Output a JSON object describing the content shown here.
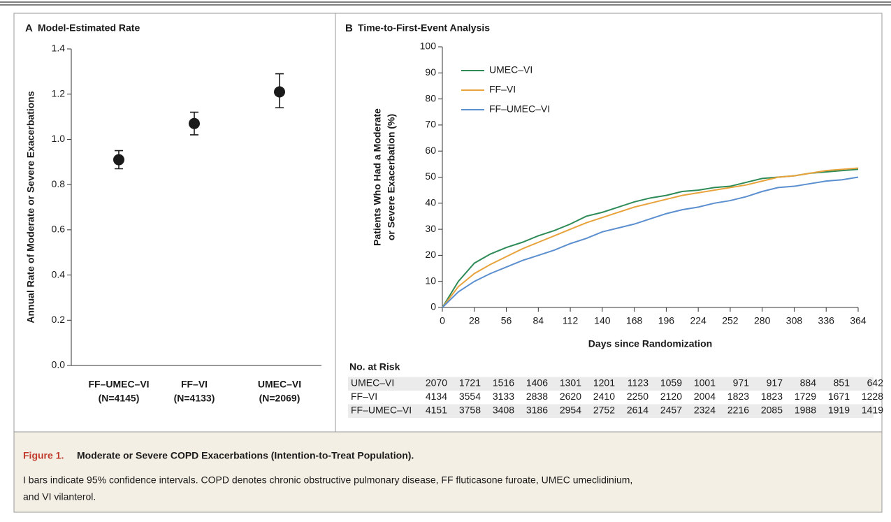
{
  "chart_data": [
    {
      "type": "errorpoint",
      "panel": "A",
      "title": "Model-Estimated Rate",
      "ylabel": "Annual Rate of Moderate or Severe Exacerbations",
      "categories": [
        "FF–UMEC–VI",
        "FF–VI",
        "UMEC–VI"
      ],
      "category_n": [
        "(N=4145)",
        "(N=4133)",
        "(N=2069)"
      ],
      "values": [
        0.91,
        1.07,
        1.21
      ],
      "ci_lower": [
        0.87,
        1.02,
        1.14
      ],
      "ci_upper": [
        0.95,
        1.12,
        1.29
      ],
      "color": "#1a1a1a",
      "ylim": [
        0,
        1.4
      ],
      "yticks": [
        {
          "value": 0,
          "label": "0.0"
        },
        0.2,
        0.4,
        0.6,
        0.8,
        {
          "value": 1,
          "label": "1.0"
        },
        1.2,
        1.4
      ]
    },
    {
      "type": "line",
      "panel": "B",
      "title": "Time-to-First-Event Analysis",
      "xlabel": "Days since Randomization",
      "ylabel": [
        "Patients Who Had a Moderate",
        "or Severe Exacerbation (%)"
      ],
      "x": [
        0,
        7,
        14,
        28,
        42,
        56,
        70,
        84,
        98,
        112,
        126,
        140,
        154,
        168,
        182,
        196,
        210,
        224,
        238,
        252,
        266,
        280,
        294,
        308,
        322,
        336,
        350,
        364
      ],
      "series": [
        {
          "name": "UMEC–VI",
          "color": "#2e8b57",
          "values": [
            0,
            5,
            10,
            17,
            20.5,
            23,
            25,
            27.5,
            29.5,
            32,
            35,
            36.5,
            38.5,
            40.5,
            42,
            43,
            44.5,
            45,
            46,
            46.5,
            48,
            49.5,
            50,
            50.5,
            51.5,
            52,
            52.5,
            53
          ]
        },
        {
          "name": "FF–VI",
          "color": "#e8a33c",
          "values": [
            0,
            4,
            8,
            13,
            16.5,
            19.5,
            22.5,
            25,
            27.5,
            30,
            32.5,
            34.5,
            36.5,
            38.5,
            40,
            41.5,
            43,
            44,
            45,
            46,
            47,
            48.5,
            50,
            50.5,
            51.5,
            52.5,
            53,
            53.5
          ]
        },
        {
          "name": "FF–UMEC–VI",
          "color": "#5b8fcf",
          "values": [
            0,
            3,
            6,
            10,
            13,
            15.5,
            18,
            20,
            22,
            24.5,
            26.5,
            29,
            30.5,
            32,
            34,
            36,
            37.5,
            38.5,
            40,
            41,
            42.5,
            44.5,
            46,
            46.5,
            47.5,
            48.5,
            49,
            50
          ]
        }
      ],
      "xlim": [
        0,
        364
      ],
      "xticks": [
        0,
        28,
        56,
        84,
        112,
        140,
        168,
        196,
        224,
        252,
        280,
        308,
        336,
        364
      ],
      "ylim": [
        0,
        100
      ],
      "yticks": [
        0,
        10,
        20,
        30,
        40,
        50,
        60,
        70,
        80,
        90,
        100
      ],
      "legend": "top-left",
      "risk_table": {
        "title": "No. at Risk",
        "rows": [
          {
            "name": "UMEC–VI",
            "values": [
              2070,
              1721,
              1516,
              1406,
              1301,
              1201,
              1123,
              1059,
              1001,
              971,
              917,
              884,
              851,
              642
            ]
          },
          {
            "name": "FF–VI",
            "values": [
              4134,
              3554,
              3133,
              2838,
              2620,
              2410,
              2250,
              2120,
              2004,
              1823,
              1823,
              1729,
              1671,
              1228
            ]
          },
          {
            "name": "FF–UMEC–VI",
            "values": [
              4151,
              3758,
              3408,
              3186,
              2954,
              2752,
              2614,
              2457,
              2324,
              2216,
              2085,
              1988,
              1919,
              1419
            ]
          }
        ]
      }
    }
  ],
  "caption": {
    "label": "Figure 1.",
    "title": "Moderate or Severe COPD Exacerbations (Intention-to-Treat Population).",
    "body": [
      "I bars indicate 95% confidence intervals. COPD denotes chronic obstructive pulmonary disease, FF fluticasone furoate, UMEC umeclidinium,",
      "and VI vilanterol."
    ]
  }
}
